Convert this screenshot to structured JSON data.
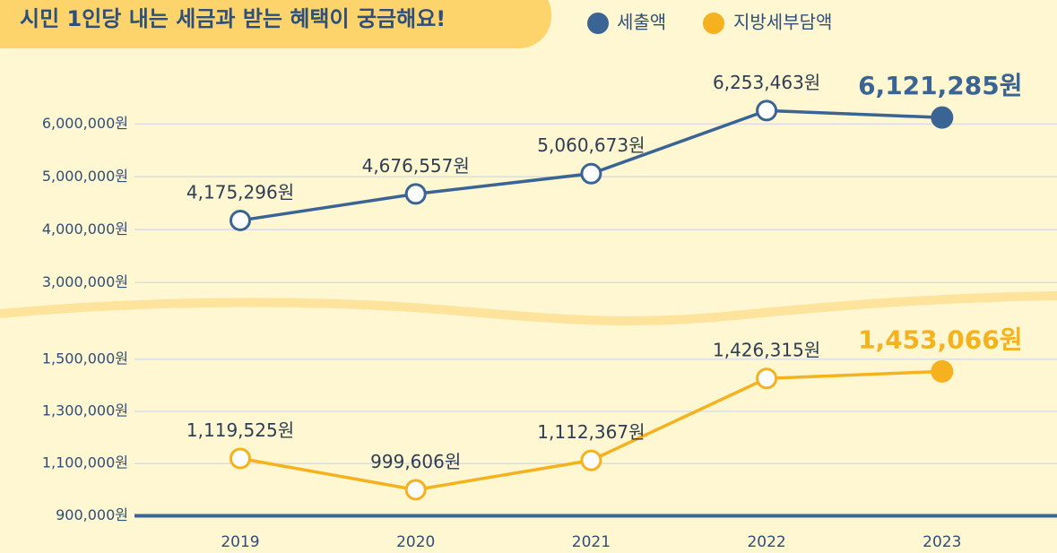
{
  "chart_data": [
    {
      "type": "line",
      "title": "시민 1인당 내는 세금과 받는 혜택이 궁금해요!",
      "series": [
        {
          "name": "세출액",
          "color": "#3a6494",
          "values": [
            4175296,
            4676557,
            5060673,
            6253463,
            6121285
          ],
          "value_labels": [
            "4,175,296원",
            "4,676,557원",
            "5,060,673원",
            "6,253,463원",
            "6,121,285원"
          ]
        }
      ],
      "ylim": [
        2750000,
        6650000
      ],
      "yticks": [
        {
          "value": 3000000,
          "label": "3,000,000원"
        },
        {
          "value": 4000000,
          "label": "4,000,000원"
        },
        {
          "value": 5000000,
          "label": "5,000,000원"
        },
        {
          "value": 6000000,
          "label": "6,000,000원"
        }
      ],
      "grid": true
    },
    {
      "type": "line",
      "categories": [
        "2019",
        "2020",
        "2021",
        "2022",
        "2023"
      ],
      "series": [
        {
          "name": "지방세부담액",
          "color": "#f5b21e",
          "values": [
            1119525,
            999606,
            1112367,
            1426315,
            1453066
          ],
          "value_labels": [
            "1,119,525원",
            "999,606원",
            "1,112,367원",
            "1,426,315원",
            "1,453,066원"
          ]
        }
      ],
      "ylim": [
        850000,
        1640000
      ],
      "yticks": [
        {
          "value": 900000,
          "label": "900,000원"
        },
        {
          "value": 1100000,
          "label": "1,100,000원"
        },
        {
          "value": 1300000,
          "label": "1,300,000원"
        },
        {
          "value": 1500000,
          "label": "1,500,000원"
        }
      ],
      "grid": true
    }
  ]
}
